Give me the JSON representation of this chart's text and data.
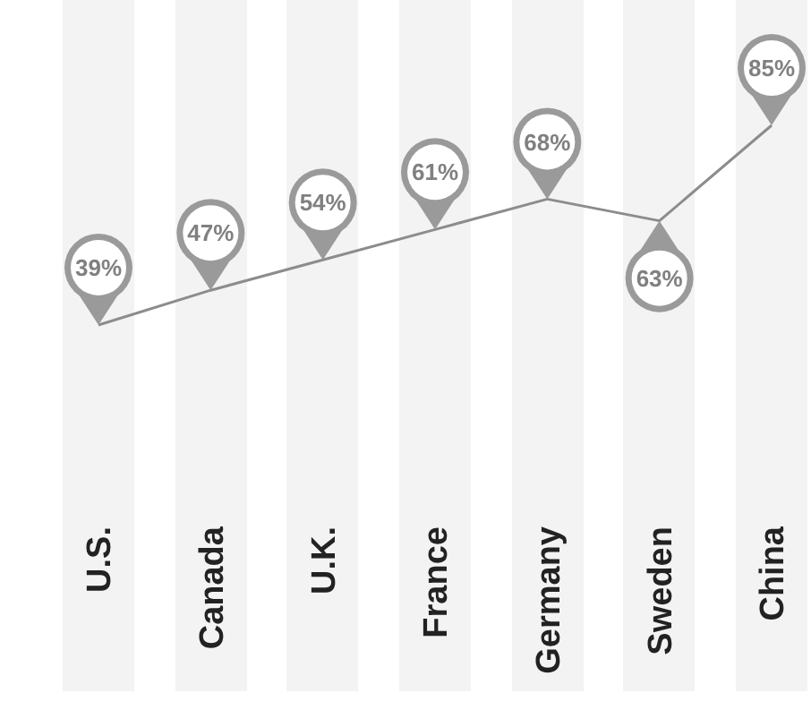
{
  "chart_data": {
    "type": "line",
    "categories": [
      "U.S.",
      "Canada",
      "U.K.",
      "France",
      "Germany",
      "Sweden",
      "China"
    ],
    "values": [
      39,
      47,
      54,
      61,
      68,
      63,
      85
    ],
    "value_labels": [
      "39%",
      "47%",
      "54%",
      "61%",
      "68%",
      "63%",
      "85%"
    ],
    "color": "#8c8c8c"
  }
}
